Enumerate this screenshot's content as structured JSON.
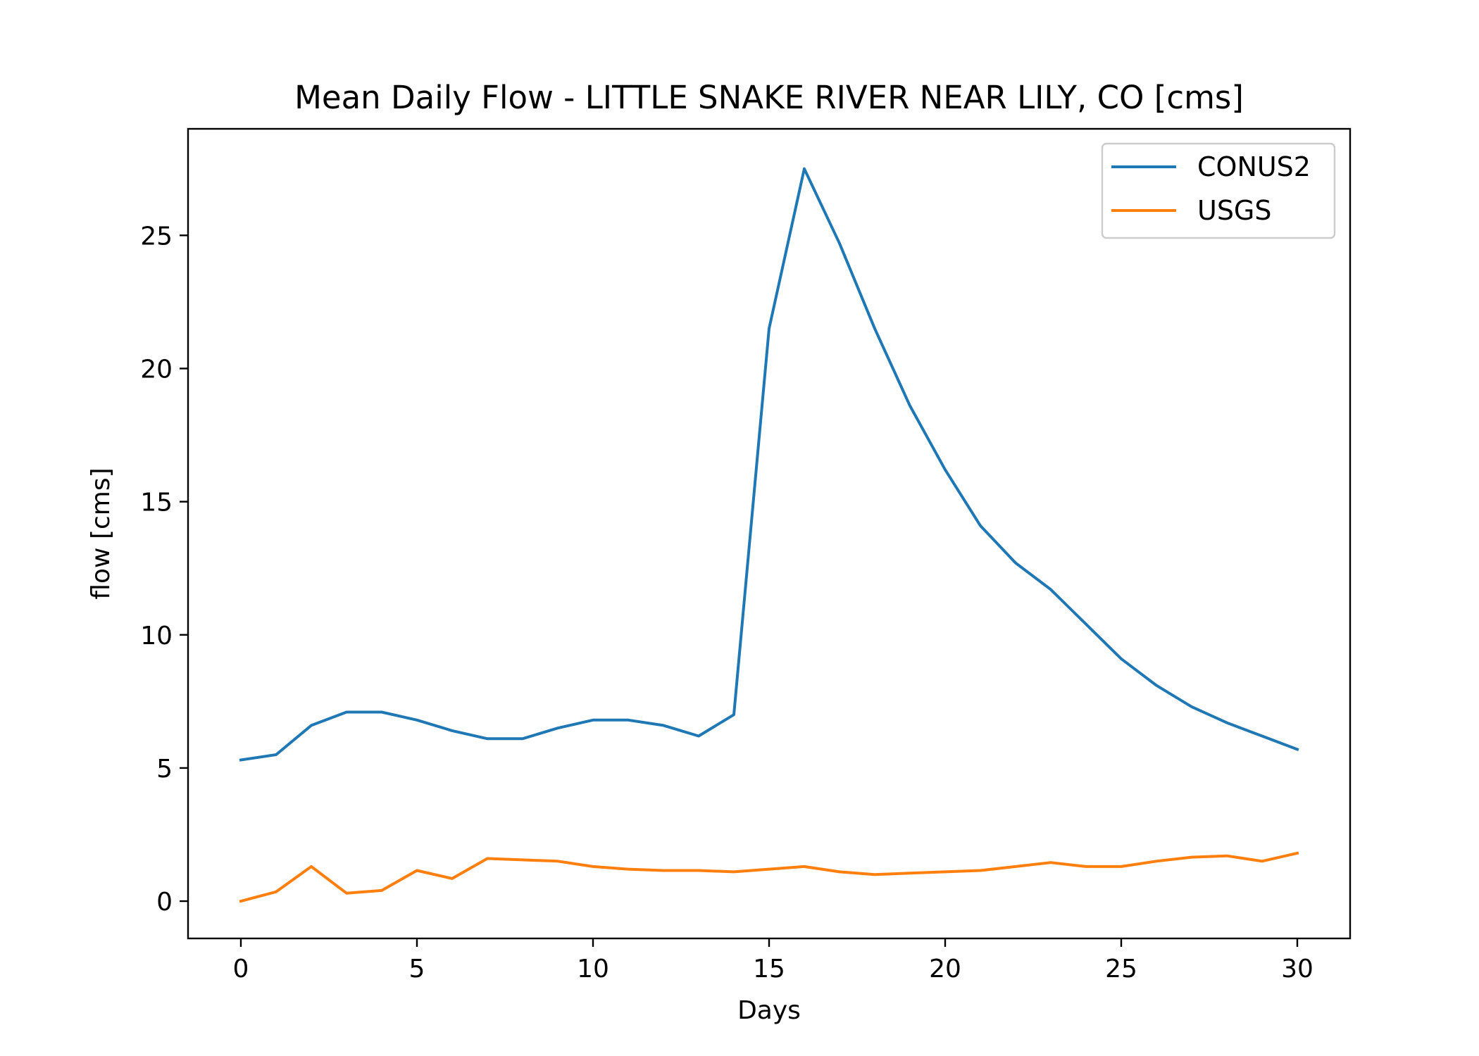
{
  "chart_data": {
    "type": "line",
    "title": "Mean Daily Flow - LITTLE SNAKE RIVER NEAR LILY, CO [cms]",
    "xlabel": "Days",
    "ylabel": "flow [cms]",
    "xlim": [
      -1.5,
      31.5
    ],
    "ylim": [
      -1.4,
      29.0
    ],
    "xticks": [
      0,
      5,
      10,
      15,
      20,
      25,
      30
    ],
    "yticks": [
      0,
      5,
      10,
      15,
      20,
      25
    ],
    "grid": false,
    "legend_position": "top-right",
    "x": [
      0,
      1,
      2,
      3,
      4,
      5,
      6,
      7,
      8,
      9,
      10,
      11,
      12,
      13,
      14,
      15,
      16,
      17,
      18,
      19,
      20,
      21,
      22,
      23,
      24,
      25,
      26,
      27,
      28,
      29,
      30
    ],
    "series": [
      {
        "name": "CONUS2",
        "color": "#1f77b4",
        "values": [
          5.3,
          5.5,
          6.6,
          7.1,
          7.1,
          6.8,
          6.4,
          6.1,
          6.1,
          6.5,
          6.8,
          6.8,
          6.6,
          6.2,
          7.0,
          21.5,
          27.5,
          24.7,
          21.5,
          18.6,
          16.2,
          14.1,
          12.7,
          11.7,
          10.4,
          9.1,
          8.1,
          7.3,
          6.7,
          6.2,
          5.7
        ]
      },
      {
        "name": "USGS",
        "color": "#ff7f0e",
        "values": [
          0.0,
          0.35,
          1.3,
          0.3,
          0.4,
          1.15,
          0.85,
          1.6,
          1.55,
          1.5,
          1.3,
          1.2,
          1.15,
          1.15,
          1.1,
          1.2,
          1.3,
          1.1,
          1.0,
          1.05,
          1.1,
          1.15,
          1.3,
          1.45,
          1.3,
          1.3,
          1.5,
          1.65,
          1.7,
          1.5,
          1.8
        ]
      }
    ]
  }
}
